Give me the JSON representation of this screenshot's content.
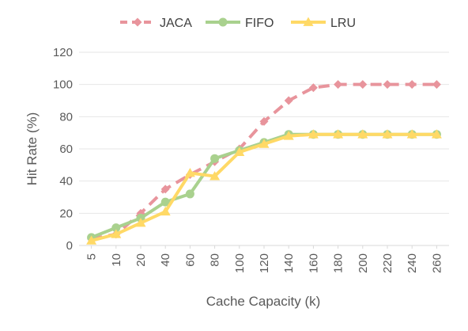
{
  "chart_data": {
    "type": "line",
    "title": "",
    "xlabel": "Cache Capacity (k)",
    "ylabel": "Hit Rate (%)",
    "ylim": [
      0,
      120
    ],
    "yticks": [
      0,
      20,
      40,
      60,
      80,
      100,
      120
    ],
    "grid": "horizontal",
    "legend_position": "top",
    "categories": [
      "5",
      "10",
      "20",
      "40",
      "60",
      "80",
      "100",
      "120",
      "140",
      "160",
      "180",
      "200",
      "220",
      "240",
      "260"
    ],
    "series": [
      {
        "name": "JACA",
        "color": "#E8949C",
        "line_style": "dashed",
        "marker": "diamond",
        "values": [
          4,
          7,
          20,
          35,
          44,
          52,
          60,
          77,
          90,
          98,
          100,
          100,
          100,
          100,
          100
        ]
      },
      {
        "name": "FIFO",
        "color": "#A9D18E",
        "line_style": "solid",
        "marker": "circle",
        "values": [
          5,
          11,
          17,
          27,
          32,
          54,
          59,
          64,
          69,
          69,
          69,
          69,
          69,
          69,
          69
        ]
      },
      {
        "name": "LRU",
        "color": "#FFD966",
        "line_style": "solid",
        "marker": "triangle",
        "values": [
          3,
          7,
          14,
          21,
          45,
          43,
          58,
          63,
          68,
          69,
          69,
          69,
          69,
          69,
          69
        ]
      }
    ]
  }
}
